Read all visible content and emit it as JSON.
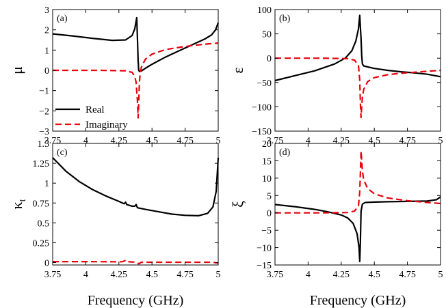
{
  "x_axis_label": "Frequency (GHz)",
  "legend": {
    "real_label": "Real",
    "imag_label": "Imaginary",
    "real_color": "#000000",
    "imag_color": "#e8000b"
  },
  "chart_data": [
    {
      "type": "line",
      "panel_label": "(a)",
      "ylabel": "μ",
      "xlabel": "",
      "xlim": [
        3.75,
        5.0
      ],
      "ylim": [
        -3,
        3
      ],
      "x_ticks": [
        "3.75",
        "4",
        "4.25",
        "4.5",
        "4.75",
        "5"
      ],
      "y_tick_values": [
        -3,
        -2,
        -1,
        0,
        1,
        2,
        3
      ],
      "y_tick_labels": [
        "−3",
        "−2",
        "−1",
        "0",
        "1",
        "2",
        "3"
      ],
      "series": [
        {
          "name": "Real",
          "x": [
            3.75,
            3.9,
            4.05,
            4.2,
            4.3,
            4.35,
            4.37,
            4.385,
            4.39,
            4.395,
            4.4,
            4.405,
            4.42,
            4.45,
            4.5,
            4.6,
            4.7,
            4.8,
            4.9,
            4.95,
            4.98,
            5.0
          ],
          "y": [
            1.8,
            1.7,
            1.58,
            1.48,
            1.5,
            1.72,
            2.05,
            2.6,
            1.6,
            0.5,
            0.0,
            -0.05,
            -0.03,
            0.1,
            0.3,
            0.65,
            0.95,
            1.25,
            1.55,
            1.75,
            2.0,
            2.35
          ]
        },
        {
          "name": "Imaginary",
          "x": [
            3.75,
            4.1,
            4.3,
            4.35,
            4.37,
            4.38,
            4.39,
            4.395,
            4.4,
            4.405,
            4.41,
            4.42,
            4.45,
            4.5,
            4.6,
            4.7,
            4.8,
            4.9,
            5.0
          ],
          "y": [
            0,
            0,
            -0.02,
            -0.1,
            -0.3,
            -0.6,
            -1.5,
            -2.35,
            -1.6,
            -0.6,
            -0.2,
            0.15,
            0.55,
            0.8,
            1.02,
            1.13,
            1.22,
            1.29,
            1.35
          ]
        }
      ]
    },
    {
      "type": "line",
      "panel_label": "(b)",
      "ylabel": "ε",
      "xlabel": "",
      "xlim": [
        3.75,
        5.0
      ],
      "ylim": [
        -150,
        100
      ],
      "x_ticks": [
        "3.75",
        "4",
        "4.25",
        "4.5",
        "4.75",
        "5"
      ],
      "y_tick_values": [
        -150,
        -100,
        -50,
        0,
        50,
        100
      ],
      "y_tick_labels": [
        "−150",
        "−100",
        "−50",
        "0",
        "50",
        "100"
      ],
      "series": [
        {
          "name": "Real",
          "x": [
            3.75,
            3.9,
            4.05,
            4.2,
            4.28,
            4.33,
            4.36,
            4.38,
            4.39,
            4.4,
            4.405,
            4.41,
            4.42,
            4.45,
            4.5,
            4.6,
            4.7,
            4.8,
            4.9,
            5.0
          ],
          "y": [
            -46,
            -36,
            -26,
            -12,
            0,
            15,
            35,
            60,
            88,
            40,
            5,
            -12,
            -16,
            -18,
            -21,
            -25,
            -28,
            -30,
            -33,
            -38
          ]
        },
        {
          "name": "Imaginary",
          "x": [
            3.75,
            4.1,
            4.3,
            4.35,
            4.38,
            4.39,
            4.395,
            4.4,
            4.405,
            4.41,
            4.42,
            4.45,
            4.5,
            4.6,
            4.7,
            4.8,
            4.9,
            5.0
          ],
          "y": [
            0,
            0,
            -1,
            -4,
            -15,
            -45,
            -95,
            -122,
            -100,
            -80,
            -64,
            -48,
            -40,
            -34,
            -31,
            -29,
            -27,
            -25
          ]
        }
      ]
    },
    {
      "type": "line",
      "panel_label": "(c)",
      "ylabel": "κt",
      "xlabel": "Frequency (GHz)",
      "xlim": [
        3.75,
        5.0
      ],
      "ylim": [
        -0.03,
        1.5
      ],
      "x_ticks": [
        "3.75",
        "4",
        "4.25",
        "4.5",
        "4.75",
        "5"
      ],
      "y_tick_values": [
        0,
        0.25,
        0.5,
        0.75,
        1.0,
        1.25,
        1.5
      ],
      "y_tick_labels": [
        "0",
        "0.25",
        "0.5",
        "0.75",
        "1",
        "1.25",
        "1.5"
      ],
      "series": [
        {
          "name": "Real",
          "x": [
            3.75,
            3.85,
            3.95,
            4.05,
            4.15,
            4.25,
            4.29,
            4.3,
            4.31,
            4.35,
            4.37,
            4.38,
            4.39,
            4.45,
            4.55,
            4.65,
            4.75,
            4.85,
            4.92,
            4.96,
            4.985,
            5.0
          ],
          "y": [
            1.32,
            1.15,
            1.02,
            0.92,
            0.84,
            0.77,
            0.74,
            0.76,
            0.73,
            0.71,
            0.71,
            0.73,
            0.69,
            0.67,
            0.64,
            0.61,
            0.595,
            0.59,
            0.62,
            0.7,
            0.9,
            1.32
          ]
        },
        {
          "name": "Imaginary",
          "x": [
            3.75,
            4.0,
            4.2,
            4.27,
            4.29,
            4.3,
            4.31,
            4.35,
            4.38,
            4.39,
            4.4,
            4.42,
            4.6,
            4.8,
            4.95,
            5.0
          ],
          "y": [
            0.012,
            0.012,
            0.01,
            0.01,
            0.018,
            0.03,
            0.012,
            0.008,
            0.005,
            -0.005,
            -0.015,
            0.004,
            0.004,
            0.004,
            0.004,
            -0.005
          ]
        }
      ]
    },
    {
      "type": "line",
      "panel_label": "(d)",
      "ylabel": "ξ",
      "xlabel": "Frequency (GHz)",
      "xlim": [
        3.75,
        5.0
      ],
      "ylim": [
        -15,
        20
      ],
      "x_ticks": [
        "3.75",
        "4",
        "4.25",
        "4.5",
        "4.75",
        "5"
      ],
      "y_tick_values": [
        -15,
        -10,
        -5,
        0,
        5,
        10,
        15,
        20
      ],
      "y_tick_labels": [
        "−15",
        "−10",
        "−5",
        "0",
        "5",
        "10",
        "15",
        "20"
      ],
      "series": [
        {
          "name": "Real",
          "x": [
            3.75,
            3.9,
            4.05,
            4.15,
            4.25,
            4.3,
            4.34,
            4.37,
            4.385,
            4.39,
            4.395,
            4.4,
            4.41,
            4.43,
            4.5,
            4.6,
            4.75,
            4.9,
            4.97,
            5.0
          ],
          "y": [
            2.4,
            1.8,
            1.0,
            0.3,
            -0.6,
            -1.5,
            -3.0,
            -6.0,
            -10.0,
            -14.0,
            -8.0,
            0.5,
            2.5,
            3.0,
            3.1,
            3.2,
            3.3,
            3.4,
            3.8,
            4.6
          ]
        },
        {
          "name": "Imaginary",
          "x": [
            3.75,
            4.1,
            4.3,
            4.35,
            4.38,
            4.39,
            4.395,
            4.4,
            4.405,
            4.41,
            4.42,
            4.45,
            4.5,
            4.6,
            4.75,
            4.9,
            5.0
          ],
          "y": [
            0,
            0,
            0.1,
            0.5,
            2.0,
            6.0,
            12.0,
            17.8,
            15.0,
            12.0,
            9.5,
            7.0,
            5.5,
            4.3,
            3.5,
            3.0,
            2.7
          ]
        }
      ]
    }
  ]
}
